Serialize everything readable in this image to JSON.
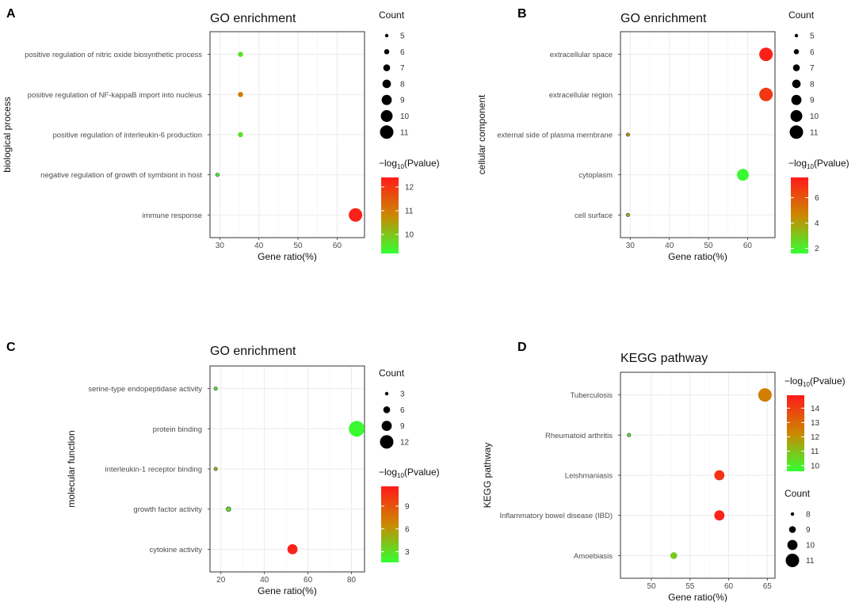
{
  "chart_data": [
    {
      "panel": "A",
      "type": "scatter",
      "title": "GO enrichment",
      "xlabel": "Gene ratio(%)",
      "ylabel": "biological process",
      "xlim": [
        27.5,
        67
      ],
      "xticks": [
        30,
        40,
        50,
        60
      ],
      "categories": [
        "positive regulation of nitric oxide biosynthetic process",
        "positive regulation of NF-kappaB import into nucleus",
        "positive regulation of interleukin-6 production",
        "negative regulation of growth of symbiont in host",
        "immune response"
      ],
      "points": [
        {
          "term": "positive regulation of nitric oxide biosynthetic process",
          "gene_ratio": 35.3,
          "count": 6,
          "neglog10p": 9.6
        },
        {
          "term": "positive regulation of NF-kappaB import into nucleus",
          "gene_ratio": 35.3,
          "count": 6,
          "neglog10p": 11.0
        },
        {
          "term": "positive regulation of interleukin-6 production",
          "gene_ratio": 35.3,
          "count": 6,
          "neglog10p": 9.6
        },
        {
          "term": "negative regulation of growth of symbiont in host",
          "gene_ratio": 29.4,
          "count": 5,
          "neglog10p": 9.3
        },
        {
          "term": "immune response",
          "gene_ratio": 64.7,
          "count": 11,
          "neglog10p": 12.3
        }
      ],
      "count_legend": {
        "title": "Count",
        "values": [
          5,
          6,
          7,
          8,
          9,
          10,
          11
        ]
      },
      "color_legend": {
        "title_prefix": "−log",
        "title_sub": "10",
        "title_suffix": "(Pvalue)",
        "ticks": [
          10,
          11,
          12
        ],
        "min": 9.2,
        "max": 12.4
      }
    },
    {
      "panel": "B",
      "type": "scatter",
      "title": "GO enrichment",
      "xlabel": "Gene ratio(%)",
      "ylabel": "cellular component",
      "xlim": [
        27.5,
        67
      ],
      "xticks": [
        30,
        40,
        50,
        60
      ],
      "categories": [
        "extracellular space",
        "extracellular region",
        "external side of plasma membrane",
        "cytoplasm",
        "cell surface"
      ],
      "points": [
        {
          "term": "extracellular space",
          "gene_ratio": 64.7,
          "count": 11,
          "neglog10p": 7.4
        },
        {
          "term": "extracellular region",
          "gene_ratio": 64.7,
          "count": 11,
          "neglog10p": 6.8
        },
        {
          "term": "external side of plasma membrane",
          "gene_ratio": 29.4,
          "count": 5,
          "neglog10p": 4.2
        },
        {
          "term": "cytoplasm",
          "gene_ratio": 58.8,
          "count": 10,
          "neglog10p": 1.7
        },
        {
          "term": "cell surface",
          "gene_ratio": 29.4,
          "count": 5,
          "neglog10p": 3.3
        }
      ],
      "count_legend": {
        "title": "Count",
        "values": [
          5,
          6,
          7,
          8,
          9,
          10,
          11
        ]
      },
      "color_legend": {
        "title_prefix": "−log",
        "title_sub": "10",
        "title_suffix": "(Pvalue)",
        "ticks": [
          2,
          4,
          6
        ],
        "min": 1.6,
        "max": 7.6
      }
    },
    {
      "panel": "C",
      "type": "scatter",
      "title": "GO enrichment",
      "xlabel": "Gene ratio(%)",
      "ylabel": "molecular function",
      "xlim": [
        15,
        86
      ],
      "xticks": [
        20,
        40,
        60,
        80
      ],
      "categories": [
        "serine-type endopeptidase activity",
        "protein binding",
        "interleukin-1 receptor binding",
        "growth factor activity",
        "cytokine activity"
      ],
      "points": [
        {
          "term": "serine-type endopeptidase activity",
          "gene_ratio": 17.6,
          "count": 3,
          "neglog10p": 2.5
        },
        {
          "term": "protein binding",
          "gene_ratio": 82.4,
          "count": 14,
          "neglog10p": 1.8
        },
        {
          "term": "interleukin-1 receptor binding",
          "gene_ratio": 17.6,
          "count": 3,
          "neglog10p": 4.5
        },
        {
          "term": "growth factor activity",
          "gene_ratio": 23.5,
          "count": 4,
          "neglog10p": 2.8
        },
        {
          "term": "cytokine activity",
          "gene_ratio": 52.9,
          "count": 9,
          "neglog10p": 11.2
        }
      ],
      "count_legend": {
        "title": "Count",
        "values": [
          3,
          6,
          9,
          12
        ]
      },
      "color_legend": {
        "title_prefix": "−log",
        "title_sub": "10",
        "title_suffix": "(Pvalue)",
        "ticks": [
          3,
          6,
          9
        ],
        "min": 1.6,
        "max": 11.6
      }
    },
    {
      "panel": "D",
      "type": "scatter",
      "title": "KEGG pathway",
      "xlabel": "Gene ratio(%)",
      "ylabel": "KEGG pathway",
      "xlim": [
        46,
        66
      ],
      "xticks": [
        50,
        55,
        60,
        65
      ],
      "categories": [
        "Tuberculosis",
        "Rheumatoid arthritis",
        "Leishmaniasis",
        "Inflammatory bowel disease (IBD)",
        "Amoebiasis"
      ],
      "points": [
        {
          "term": "Tuberculosis",
          "gene_ratio": 64.7,
          "count": 11,
          "neglog10p": 12.5
        },
        {
          "term": "Rheumatoid arthritis",
          "gene_ratio": 47.1,
          "count": 8,
          "neglog10p": 10.2
        },
        {
          "term": "Leishmaniasis",
          "gene_ratio": 58.8,
          "count": 10,
          "neglog10p": 14.3
        },
        {
          "term": "Inflammatory bowel disease (IBD)",
          "gene_ratio": 58.8,
          "count": 10,
          "neglog10p": 14.7
        },
        {
          "term": "Amoebiasis",
          "gene_ratio": 52.9,
          "count": 9,
          "neglog10p": 10.8
        }
      ],
      "count_legend": {
        "title": "Count",
        "values": [
          8,
          9,
          10,
          11
        ]
      },
      "color_legend": {
        "title_prefix": "−log",
        "title_sub": "10",
        "title_suffix": "(Pvalue)",
        "ticks": [
          10,
          11,
          12,
          13,
          14
        ],
        "min": 9.6,
        "max": 14.9
      }
    }
  ]
}
